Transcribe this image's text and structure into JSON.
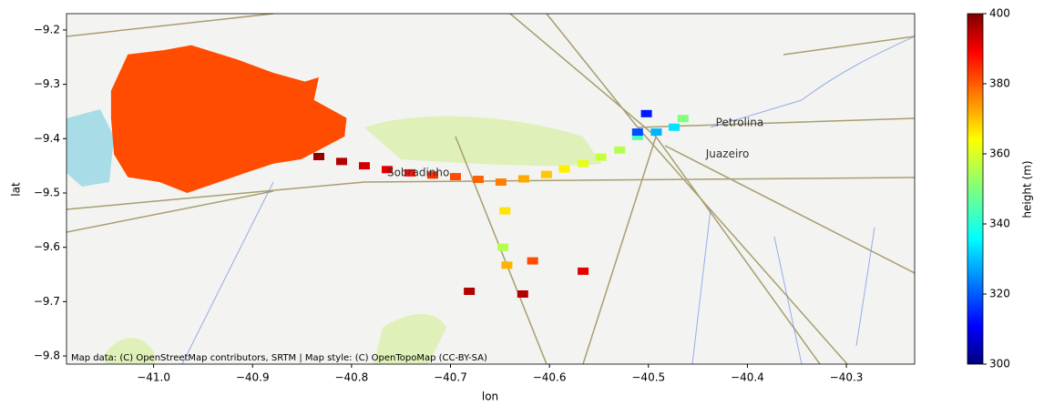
{
  "chart_data": {
    "type": "map",
    "xlabel": "lon",
    "ylabel": "lat",
    "xlim": [
      -41.088,
      -40.231
    ],
    "ylim": [
      -9.815,
      -9.17
    ],
    "xticks": [
      {
        "value": -41.0,
        "label": "−41.0"
      },
      {
        "value": -40.9,
        "label": "−40.9"
      },
      {
        "value": -40.8,
        "label": "−40.8"
      },
      {
        "value": -40.7,
        "label": "−40.7"
      },
      {
        "value": -40.6,
        "label": "−40.6"
      },
      {
        "value": -40.5,
        "label": "−40.5"
      },
      {
        "value": -40.4,
        "label": "−40.4"
      },
      {
        "value": -40.3,
        "label": "−40.3"
      }
    ],
    "yticks": [
      {
        "value": -9.2,
        "label": "−9.2"
      },
      {
        "value": -9.3,
        "label": "−9.3"
      },
      {
        "value": -9.4,
        "label": "−9.4"
      },
      {
        "value": -9.5,
        "label": "−9.5"
      },
      {
        "value": -9.6,
        "label": "−9.6"
      },
      {
        "value": -9.7,
        "label": "−9.7"
      },
      {
        "value": -9.8,
        "label": "−9.8"
      }
    ],
    "colorbar": {
      "label": "height (m)",
      "lim": [
        300,
        400
      ],
      "ticks": [
        300,
        320,
        340,
        360,
        380,
        400
      ],
      "colormap": "jet"
    },
    "regions": [
      {
        "height": 380,
        "lon": [
          -41.043,
          -41.026,
          -40.989,
          -40.962,
          -40.916,
          -40.879,
          -40.847,
          -40.833,
          -40.838,
          -40.805,
          -40.807,
          -40.833,
          -40.851,
          -40.879,
          -40.907,
          -40.934,
          -40.966,
          -40.994,
          -41.026,
          -41.04,
          -41.043
        ],
        "lat": [
          -9.312,
          -9.245,
          -9.237,
          -9.228,
          -9.254,
          -9.279,
          -9.295,
          -9.287,
          -9.329,
          -9.362,
          -9.396,
          -9.421,
          -9.438,
          -9.446,
          -9.463,
          -9.48,
          -9.5,
          -9.48,
          -9.471,
          -9.429,
          -9.362
        ]
      }
    ],
    "points": {
      "lon": [
        -40.833,
        -40.81,
        -40.787,
        -40.764,
        -40.741,
        -40.718,
        -40.695,
        -40.672,
        -40.649,
        -40.626,
        -40.603,
        -40.585,
        -40.566,
        -40.548,
        -40.529,
        -40.511,
        -40.492,
        -40.474,
        -40.511,
        -40.502,
        -40.465,
        -40.645,
        -40.647,
        -40.643,
        -40.617,
        -40.681,
        -40.566,
        -40.627
      ],
      "lat": [
        -9.433,
        -9.442,
        -9.45,
        -9.457,
        -9.463,
        -9.467,
        -9.47,
        -9.475,
        -9.48,
        -9.474,
        -9.466,
        -9.456,
        -9.446,
        -9.434,
        -9.421,
        -9.396,
        -9.388,
        -9.379,
        -9.388,
        -9.354,
        -9.363,
        -9.533,
        -9.6,
        -9.633,
        -9.625,
        -9.681,
        -9.644,
        -9.686
      ],
      "values": [
        398,
        395,
        392,
        390,
        386,
        383,
        380,
        378,
        375,
        371,
        368,
        364,
        360,
        357,
        355,
        345,
        330,
        335,
        320,
        315,
        350,
        365,
        355,
        370,
        380,
        395,
        390,
        395
      ]
    },
    "annotations": [
      {
        "text": "Petrolina",
        "x": -40.432,
        "y": -9.371
      },
      {
        "text": "Juazeiro",
        "x": -40.442,
        "y": -9.429
      },
      {
        "text": "Sobradinho",
        "x": -40.764,
        "y": -9.463
      }
    ],
    "attribution": "Map data: (C) OpenStreetMap contributors, SRTM | Map style: (C) OpenTopoMap (CC-BY-SA)"
  }
}
